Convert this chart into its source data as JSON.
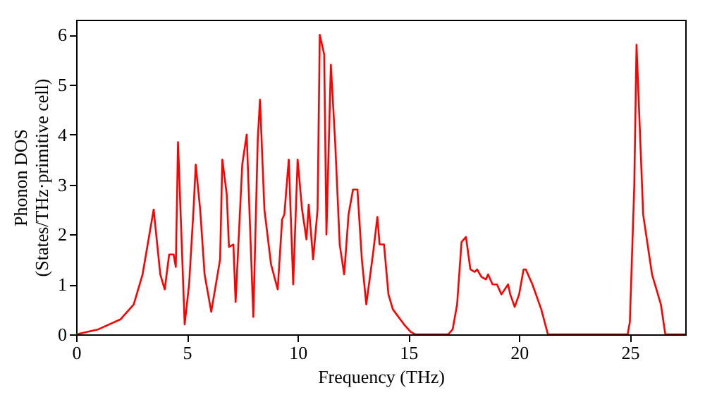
{
  "chart_data": {
    "type": "line",
    "xlabel": "Frequency (THz)",
    "ylabel": "Phonon DOS\n(States/THz·primitive cell)",
    "xlim": [
      0,
      27.5
    ],
    "ylim": [
      0,
      6.3
    ],
    "xticks": [
      0,
      5,
      10,
      15,
      20,
      25
    ],
    "yticks": [
      0,
      1,
      2,
      3,
      4,
      5,
      6
    ],
    "grid": false,
    "line_style": "solid",
    "series": [
      {
        "color": "#ff0000",
        "x": [
          0,
          1,
          2,
          2.6,
          3,
          3.5,
          3.8,
          4,
          4.2,
          4.4,
          4.5,
          4.6,
          4.9,
          5.1,
          5.3,
          5.4,
          5.6,
          5.8,
          6.1,
          6.5,
          6.6,
          6.8,
          6.9,
          7.1,
          7.2,
          7.5,
          7.7,
          8.0,
          8.2,
          8.3,
          8.5,
          8.8,
          9.1,
          9.3,
          9.4,
          9.6,
          9.8,
          10.0,
          10.2,
          10.4,
          10.5,
          10.7,
          10.9,
          11.0,
          11.2,
          11.3,
          11.5,
          11.7,
          11.9,
          12.1,
          12.3,
          12.5,
          12.7,
          12.9,
          13.1,
          13.4,
          13.6,
          13.7,
          13.9,
          14.1,
          14.3,
          14.8,
          15.1,
          15.3,
          16.8,
          17.0,
          17.2,
          17.4,
          17.6,
          17.8,
          18.0,
          18.1,
          18.3,
          18.5,
          18.6,
          18.8,
          19.0,
          19.2,
          19.5,
          19.6,
          19.8,
          20.0,
          20.2,
          20.3,
          20.6,
          21.0,
          21.3,
          24.9,
          25.0,
          25.2,
          25.3,
          25.6,
          26.0,
          26.4,
          26.6,
          27.5
        ],
        "values": [
          0,
          0.1,
          0.3,
          0.6,
          1.2,
          2.5,
          1.2,
          0.9,
          1.6,
          1.6,
          1.35,
          3.85,
          0.2,
          1,
          2.5,
          3.4,
          2.5,
          1.2,
          0.45,
          1.5,
          3.5,
          2.8,
          1.75,
          1.8,
          0.65,
          3.4,
          4.0,
          0.35,
          3.9,
          4.7,
          2.5,
          1.4,
          0.9,
          2.3,
          2.4,
          3.5,
          1.0,
          3.5,
          2.5,
          1.9,
          2.6,
          1.5,
          2.5,
          6.0,
          5.6,
          2.0,
          5.4,
          3.8,
          1.8,
          1.2,
          2.4,
          2.9,
          2.9,
          1.5,
          0.6,
          1.6,
          2.35,
          1.8,
          1.8,
          0.8,
          0.5,
          0.2,
          0.05,
          0,
          0,
          0.1,
          0.6,
          1.85,
          1.95,
          1.3,
          1.25,
          1.3,
          1.15,
          1.1,
          1.2,
          1.0,
          1.0,
          0.8,
          1.0,
          0.8,
          0.55,
          0.8,
          1.3,
          1.3,
          1.0,
          0.5,
          0,
          0,
          0.25,
          3.0,
          5.8,
          2.4,
          1.2,
          0.6,
          0,
          0
        ]
      }
    ]
  }
}
